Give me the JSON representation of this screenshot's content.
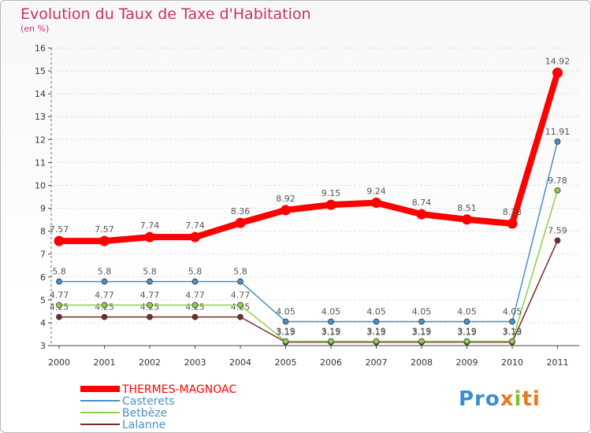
{
  "chart_data": {
    "type": "line",
    "title": "Evolution du Taux de Taxe d'Habitation",
    "subtitle": "(en %)",
    "x": [
      "2000",
      "2001",
      "2002",
      "2003",
      "2004",
      "2005",
      "2006",
      "2007",
      "2008",
      "2009",
      "2010",
      "2011"
    ],
    "ylim": [
      3,
      16
    ],
    "yticks": [
      "3",
      "4",
      "5",
      "6",
      "7",
      "8",
      "9",
      "10",
      "11",
      "12",
      "13",
      "14",
      "15",
      "16"
    ],
    "series": [
      {
        "name": "THERMES-MAGNOAC",
        "color": "#ff0000",
        "values": [
          7.57,
          7.57,
          7.74,
          7.74,
          8.36,
          8.92,
          9.15,
          9.24,
          8.74,
          8.51,
          8.33,
          14.92
        ],
        "labels": [
          "7.57",
          "7.57",
          "7.74",
          "7.74",
          "8.36",
          "8.92",
          "9.15",
          "9.24",
          "8.74",
          "8.51",
          "8.33",
          "14.92"
        ]
      },
      {
        "name": "Casterets",
        "color": "#4a90c8",
        "values": [
          5.8,
          5.8,
          5.8,
          5.8,
          5.8,
          4.05,
          4.05,
          4.05,
          4.05,
          4.05,
          4.05,
          11.91
        ],
        "labels": [
          "5.8",
          "5.8",
          "5.8",
          "5.8",
          "5.8",
          "4.05",
          "4.05",
          "4.05",
          "4.05",
          "4.05",
          "4.05",
          "11.91"
        ]
      },
      {
        "name": "Betbèze",
        "color": "#8ed04a",
        "values": [
          4.77,
          4.77,
          4.77,
          4.77,
          4.77,
          3.19,
          3.19,
          3.19,
          3.19,
          3.19,
          3.19,
          9.78
        ],
        "labels": [
          "4.77",
          "4.77",
          "4.77",
          "4.77",
          "4.77",
          "3.19",
          "3.19",
          "3.19",
          "3.19",
          "3.19",
          "3.19",
          "9.78"
        ]
      },
      {
        "name": "Lalanne",
        "color": "#7a2a2a",
        "values": [
          4.25,
          4.25,
          4.25,
          4.25,
          4.25,
          3.15,
          3.15,
          3.15,
          3.15,
          3.15,
          3.15,
          7.59
        ],
        "labels": [
          "4.25",
          "4.25",
          "4.25",
          "4.25",
          "4.25",
          "3.15",
          "3.15",
          "3.15",
          "3.15",
          "3.15",
          "3.15",
          "7.59"
        ]
      }
    ],
    "legend_position": "bottom-left"
  },
  "logo": {
    "p1": "Pro",
    "p2": "x",
    "p3": "i",
    "p4": "ti"
  }
}
